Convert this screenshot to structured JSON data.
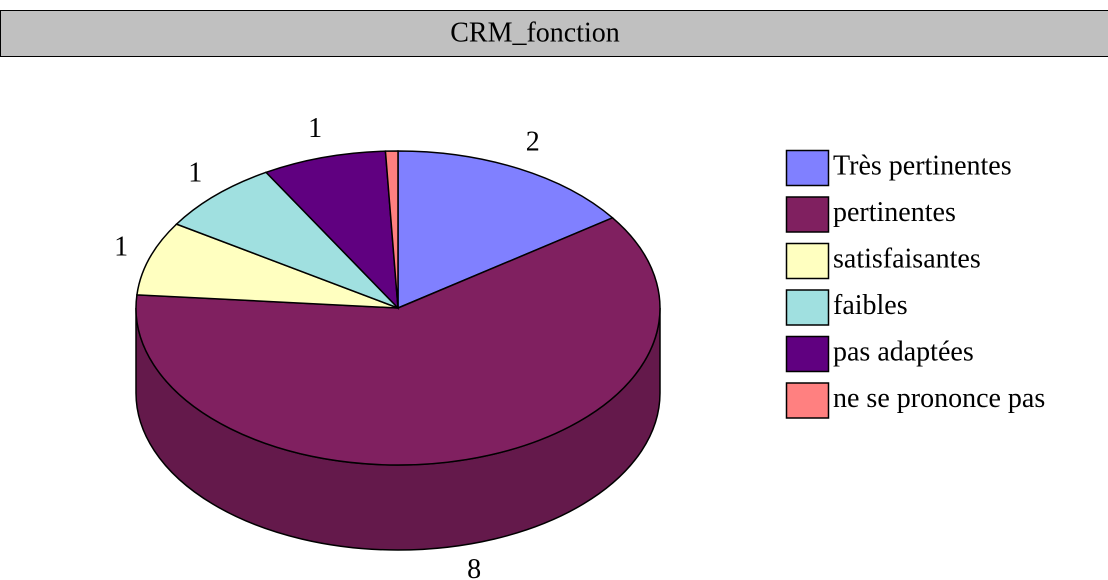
{
  "chart_data": {
    "type": "pie",
    "title": "CRM_fonction",
    "categories": [
      "Très pertinentes",
      "pertinentes",
      "satisfaisantes",
      "faibles",
      "pas adaptées",
      "ne se prononce pas"
    ],
    "values": [
      2,
      8,
      1,
      1,
      1,
      0.1
    ],
    "colors": [
      "#8080ff",
      "#802060",
      "#ffffc0",
      "#a0e0e0",
      "#600080",
      "#ff8080"
    ],
    "legend": "right"
  }
}
